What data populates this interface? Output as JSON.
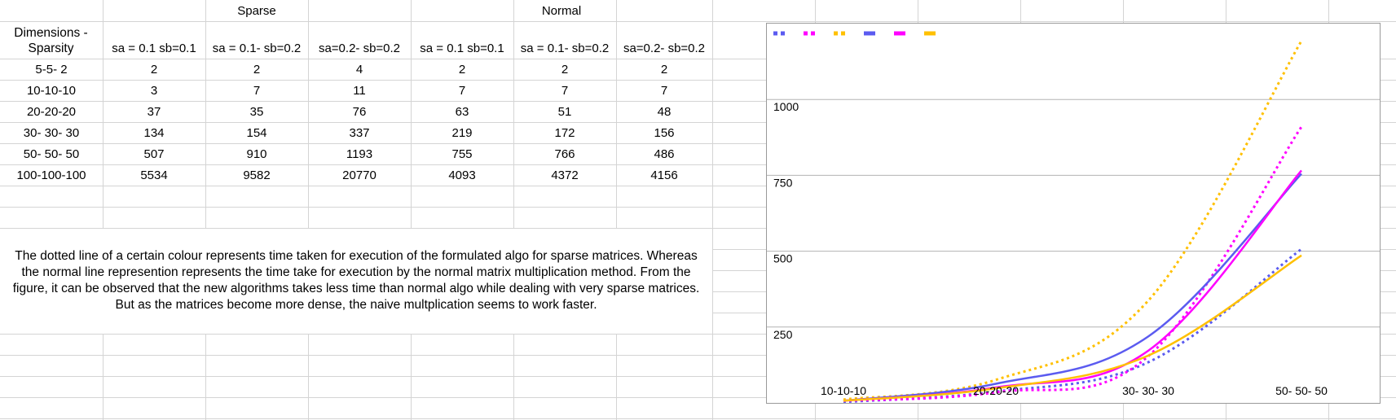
{
  "table": {
    "group_headers": [
      "Sparse",
      "Normal"
    ],
    "row_header": "Dimensions - Sparsity",
    "columns": [
      "sa = 0.1 sb=0.1",
      "sa = 0.1- sb=0.2",
      "sa=0.2- sb=0.2",
      "sa = 0.1 sb=0.1",
      "sa = 0.1- sb=0.2",
      "sa=0.2- sb=0.2"
    ],
    "rows": [
      {
        "label": "5-5- 2",
        "values": [
          "2",
          "2",
          "4",
          "2",
          "2",
          "2"
        ]
      },
      {
        "label": "10-10-10",
        "values": [
          "3",
          "7",
          "11",
          "7",
          "7",
          "7"
        ]
      },
      {
        "label": "20-20-20",
        "values": [
          "37",
          "35",
          "76",
          "63",
          "51",
          "48"
        ]
      },
      {
        "label": "30- 30- 30",
        "values": [
          "134",
          "154",
          "337",
          "219",
          "172",
          "156"
        ]
      },
      {
        "label": "50- 50- 50",
        "values": [
          "507",
          "910",
          "1193",
          "755",
          "766",
          "486"
        ]
      },
      {
        "label": "100-100-100",
        "values": [
          "5534",
          "9582",
          "20770",
          "4093",
          "4372",
          "4156"
        ]
      }
    ]
  },
  "note": "The dotted line of a certain colour represents time taken for execution of the formulated algo for sparse matrices. Whereas the  normal line represention represents the time take for execution by the normal matrix multiplication method. From the figure, it can be observed that the new algorithms takes less time than normal algo while dealing with very sparse matrices. But as the matrices become more dense, the naive multplication seems to work faster.",
  "chart_data": {
    "type": "line",
    "categories": [
      "10-10-10",
      "20-20-20",
      "30- 30- 30",
      "50- 50- 50"
    ],
    "y_ticks": [
      250,
      500,
      750,
      1000
    ],
    "ylim": [
      0,
      1250
    ],
    "grid": true,
    "legend_placement": "top-left",
    "series": [
      {
        "values": [
          3,
          37,
          134,
          507
        ],
        "color": "#5b5bf0",
        "dash": "dotted"
      },
      {
        "values": [
          7,
          35,
          154,
          910
        ],
        "color": "#ff00ff",
        "dash": "dotted"
      },
      {
        "values": [
          11,
          76,
          337,
          1193
        ],
        "color": "#ffc000",
        "dash": "dotted"
      },
      {
        "values": [
          7,
          63,
          219,
          755
        ],
        "color": "#5b5bf0",
        "dash": "solid"
      },
      {
        "values": [
          7,
          51,
          172,
          766
        ],
        "color": "#ff00ff",
        "dash": "solid"
      },
      {
        "values": [
          7,
          48,
          156,
          486
        ],
        "color": "#ffc000",
        "dash": "solid"
      }
    ]
  }
}
